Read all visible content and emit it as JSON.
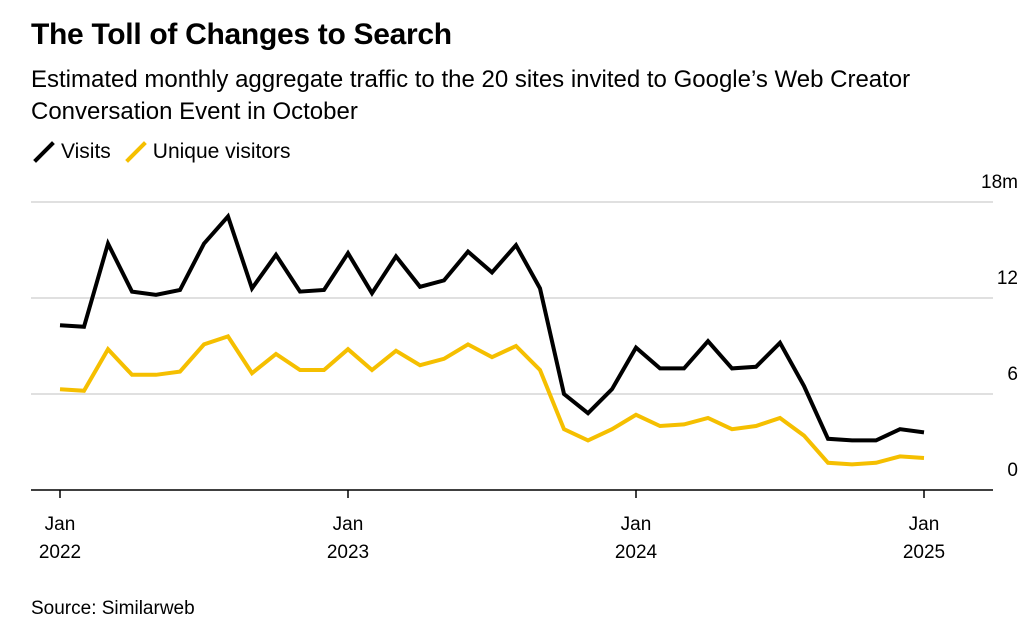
{
  "colors": {
    "visits": "#000000",
    "unique": "#f5bf00",
    "grid": "#d6d6d6",
    "axis": "#000000"
  },
  "chart_data": {
    "type": "line",
    "title": "The Toll of Changes to Search",
    "subtitle": "Estimated monthly aggregate traffic to the 20 sites invited to Google’s Web Creator Conversation Event in October",
    "source": "Source: Similarweb",
    "y_unit_label": "18m",
    "ylim": [
      0,
      18
    ],
    "y_ticks": [
      0,
      6,
      12,
      18
    ],
    "y_tick_labels": [
      "0",
      "6",
      "12",
      "18m"
    ],
    "x_ticks": [
      {
        "index": 0,
        "month": "Jan",
        "year": "2022"
      },
      {
        "index": 12,
        "month": "Jan",
        "year": "2023"
      },
      {
        "index": 24,
        "month": "Jan",
        "year": "2024"
      },
      {
        "index": 36,
        "month": "Jan",
        "year": "2025"
      }
    ],
    "x": [
      "2022-01",
      "2022-02",
      "2022-03",
      "2022-04",
      "2022-05",
      "2022-06",
      "2022-07",
      "2022-08",
      "2022-09",
      "2022-10",
      "2022-11",
      "2022-12",
      "2023-01",
      "2023-02",
      "2023-03",
      "2023-04",
      "2023-05",
      "2023-06",
      "2023-07",
      "2023-08",
      "2023-09",
      "2023-10",
      "2023-11",
      "2023-12",
      "2024-01",
      "2024-02",
      "2024-03",
      "2024-04",
      "2024-05",
      "2024-06",
      "2024-07",
      "2024-08",
      "2024-09",
      "2024-10",
      "2024-11",
      "2024-12",
      "2025-01"
    ],
    "series": [
      {
        "name": "Visits",
        "key": "visits",
        "values": [
          10.3,
          10.2,
          15.4,
          12.4,
          12.2,
          12.5,
          15.4,
          17.1,
          12.6,
          14.7,
          12.4,
          12.5,
          14.8,
          12.3,
          14.6,
          12.7,
          13.1,
          14.9,
          13.6,
          15.3,
          12.6,
          6.0,
          4.8,
          6.3,
          8.9,
          7.6,
          7.6,
          9.3,
          7.6,
          7.7,
          9.2,
          6.5,
          3.2,
          3.1,
          3.1,
          3.8,
          3.6
        ]
      },
      {
        "name": "Unique visitors",
        "key": "unique",
        "values": [
          6.3,
          6.2,
          8.8,
          7.2,
          7.2,
          7.4,
          9.1,
          9.6,
          7.3,
          8.5,
          7.5,
          7.5,
          8.8,
          7.5,
          8.7,
          7.8,
          8.2,
          9.1,
          8.3,
          9.0,
          7.5,
          3.8,
          3.1,
          3.8,
          4.7,
          4.0,
          4.1,
          4.5,
          3.8,
          4.0,
          4.5,
          3.4,
          1.7,
          1.6,
          1.7,
          2.1,
          2.0
        ]
      }
    ]
  }
}
